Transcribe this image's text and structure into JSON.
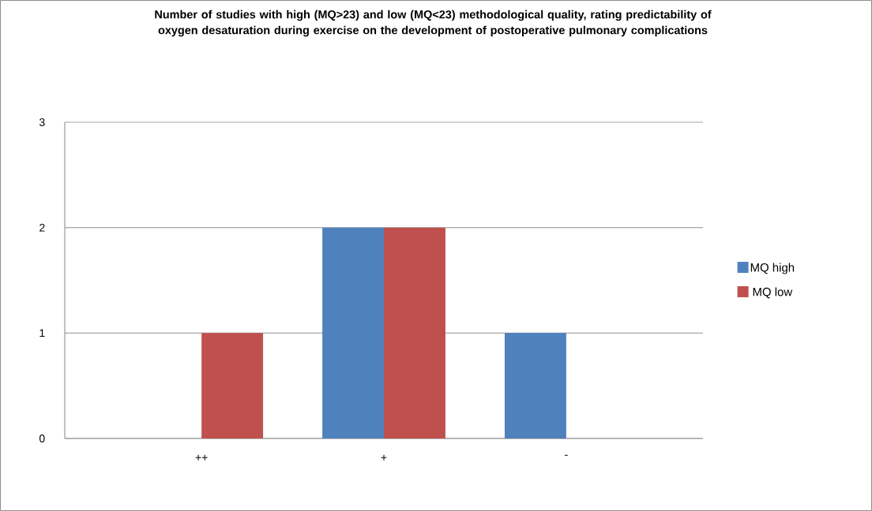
{
  "chart_data": {
    "type": "bar",
    "title": "Number of studies with high (MQ>23) and low (MQ<23) methodological quality, rating predictability of oxygen desaturation during exercise on the development of postoperative pulmonary complications",
    "categories": [
      "++",
      "+",
      "-"
    ],
    "series": [
      {
        "name": "MQ high",
        "color": "#4f81bd",
        "values": [
          0,
          2,
          1
        ]
      },
      {
        "name": "MQ low",
        "color": "#c0504d",
        "values": [
          1,
          2,
          0
        ]
      }
    ],
    "ylim": [
      0,
      3
    ],
    "yticks": [
      0,
      1,
      2,
      3
    ],
    "grid": "y",
    "legend": "right"
  }
}
